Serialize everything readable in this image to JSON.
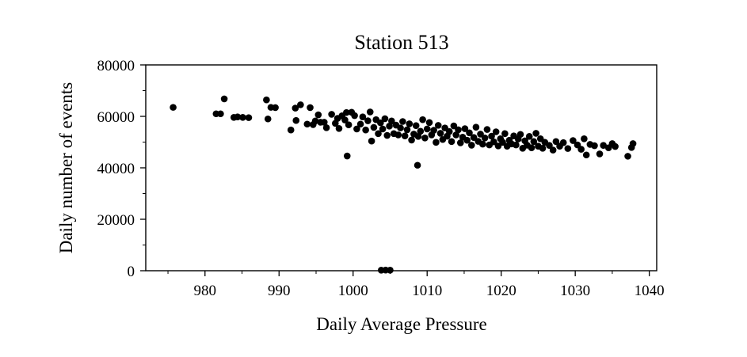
{
  "chart_data": {
    "type": "scatter",
    "title": "Station 513",
    "xlabel": "Daily Average Pressure",
    "ylabel": "Daily number of events",
    "xlim": [
      972,
      1041
    ],
    "ylim": [
      0,
      80000
    ],
    "x_ticks": [
      980,
      990,
      1000,
      1010,
      1020,
      1030,
      1040
    ],
    "y_ticks": [
      0,
      20000,
      40000,
      60000,
      80000
    ],
    "x_tick_labels": [
      "980",
      "990",
      "1000",
      "1010",
      "1020",
      "1030",
      "1040"
    ],
    "y_tick_labels": [
      "0",
      "20000",
      "40000",
      "60000",
      "80000"
    ],
    "grid": false,
    "point_color": "#000000",
    "points": [
      [
        975.7,
        63500
      ],
      [
        981.5,
        61000
      ],
      [
        982.1,
        61000
      ],
      [
        982.6,
        66800
      ],
      [
        983.9,
        59600
      ],
      [
        984.4,
        59800
      ],
      [
        985.1,
        59600
      ],
      [
        985.9,
        59500
      ],
      [
        988.3,
        66400
      ],
      [
        988.5,
        59000
      ],
      [
        988.9,
        63500
      ],
      [
        989.5,
        63400
      ],
      [
        991.6,
        54700
      ],
      [
        992.2,
        63200
      ],
      [
        992.3,
        58400
      ],
      [
        992.9,
        64500
      ],
      [
        993.8,
        57000
      ],
      [
        994.2,
        63400
      ],
      [
        994.6,
        56800
      ],
      [
        994.9,
        58200
      ],
      [
        995.3,
        60600
      ],
      [
        995.6,
        57700
      ],
      [
        996.1,
        57700
      ],
      [
        996.4,
        55600
      ],
      [
        997.1,
        60800
      ],
      [
        997.6,
        57300
      ],
      [
        997.9,
        59200
      ],
      [
        998.1,
        55300
      ],
      [
        998.5,
        60200
      ],
      [
        998.9,
        58600
      ],
      [
        999.1,
        61500
      ],
      [
        999.4,
        56700
      ],
      [
        999.2,
        44600
      ],
      [
        999.8,
        61600
      ],
      [
        1000.2,
        60300
      ],
      [
        1000.5,
        55100
      ],
      [
        1001.0,
        57000
      ],
      [
        1001.3,
        59800
      ],
      [
        1001.7,
        54700
      ],
      [
        1002.0,
        58300
      ],
      [
        1002.3,
        61700
      ],
      [
        1002.5,
        50400
      ],
      [
        1002.8,
        55700
      ],
      [
        1003.1,
        58700
      ],
      [
        1003.4,
        53300
      ],
      [
        1003.7,
        57500
      ],
      [
        1004.0,
        55100
      ],
      [
        1004.3,
        59100
      ],
      [
        1004.6,
        52600
      ],
      [
        1004.9,
        56200
      ],
      [
        1005.2,
        58200
      ],
      [
        1005.5,
        53300
      ],
      [
        1005.8,
        56600
      ],
      [
        1006.1,
        52800
      ],
      [
        1006.4,
        55500
      ],
      [
        1006.7,
        58000
      ],
      [
        1007.0,
        52400
      ],
      [
        1007.3,
        54800
      ],
      [
        1007.6,
        57100
      ],
      [
        1007.9,
        50800
      ],
      [
        1008.2,
        53100
      ],
      [
        1008.5,
        56400
      ],
      [
        1008.8,
        52200
      ],
      [
        1009.1,
        54200
      ],
      [
        1009.4,
        58700
      ],
      [
        1009.7,
        51600
      ],
      [
        1010.0,
        55100
      ],
      [
        1010.3,
        57600
      ],
      [
        1010.6,
        52800
      ],
      [
        1010.9,
        54600
      ],
      [
        1011.2,
        49900
      ],
      [
        1011.5,
        56500
      ],
      [
        1011.8,
        53400
      ],
      [
        1012.1,
        51000
      ],
      [
        1012.4,
        55500
      ],
      [
        1012.7,
        52300
      ],
      [
        1013.0,
        54100
      ],
      [
        1013.3,
        50200
      ],
      [
        1013.6,
        56300
      ],
      [
        1013.9,
        52800
      ],
      [
        1014.2,
        54800
      ],
      [
        1014.5,
        49700
      ],
      [
        1014.8,
        51900
      ],
      [
        1015.1,
        55200
      ],
      [
        1015.4,
        50700
      ],
      [
        1015.7,
        53600
      ],
      [
        1016.0,
        48800
      ],
      [
        1016.3,
        51800
      ],
      [
        1016.6,
        55800
      ],
      [
        1016.9,
        50300
      ],
      [
        1017.2,
        53100
      ],
      [
        1017.5,
        49200
      ],
      [
        1017.8,
        51600
      ],
      [
        1018.1,
        54900
      ],
      [
        1018.4,
        48900
      ],
      [
        1018.7,
        52300
      ],
      [
        1019.0,
        50100
      ],
      [
        1019.3,
        54000
      ],
      [
        1019.6,
        48500
      ],
      [
        1019.9,
        51300
      ],
      [
        1020.2,
        49900
      ],
      [
        1020.5,
        53300
      ],
      [
        1020.8,
        48400
      ],
      [
        1021.1,
        50700
      ],
      [
        1021.4,
        49300
      ],
      [
        1021.7,
        52400
      ],
      [
        1022.0,
        48900
      ],
      [
        1022.3,
        51200
      ],
      [
        1022.6,
        53000
      ],
      [
        1022.9,
        47600
      ],
      [
        1023.2,
        50500
      ],
      [
        1023.5,
        48800
      ],
      [
        1023.8,
        52200
      ],
      [
        1024.1,
        47800
      ],
      [
        1024.4,
        50200
      ],
      [
        1024.7,
        53400
      ],
      [
        1025.0,
        48400
      ],
      [
        1025.3,
        51300
      ],
      [
        1025.6,
        47600
      ],
      [
        1025.9,
        49900
      ],
      [
        1026.5,
        48700
      ],
      [
        1027.0,
        46900
      ],
      [
        1027.4,
        50200
      ],
      [
        1027.9,
        48400
      ],
      [
        1028.4,
        49800
      ],
      [
        1029.0,
        47500
      ],
      [
        1029.7,
        50600
      ],
      [
        1030.3,
        48900
      ],
      [
        1030.8,
        47200
      ],
      [
        1031.2,
        51300
      ],
      [
        1031.5,
        45000
      ],
      [
        1032.0,
        49100
      ],
      [
        1032.6,
        48600
      ],
      [
        1033.3,
        45400
      ],
      [
        1033.8,
        48700
      ],
      [
        1034.5,
        47800
      ],
      [
        1035.0,
        49400
      ],
      [
        1035.4,
        48300
      ],
      [
        1037.1,
        44500
      ],
      [
        1037.6,
        47900
      ],
      [
        1037.8,
        49400
      ],
      [
        1008.7,
        41000
      ],
      [
        1003.8,
        200
      ],
      [
        1004.4,
        250
      ],
      [
        1005.0,
        200
      ]
    ]
  }
}
